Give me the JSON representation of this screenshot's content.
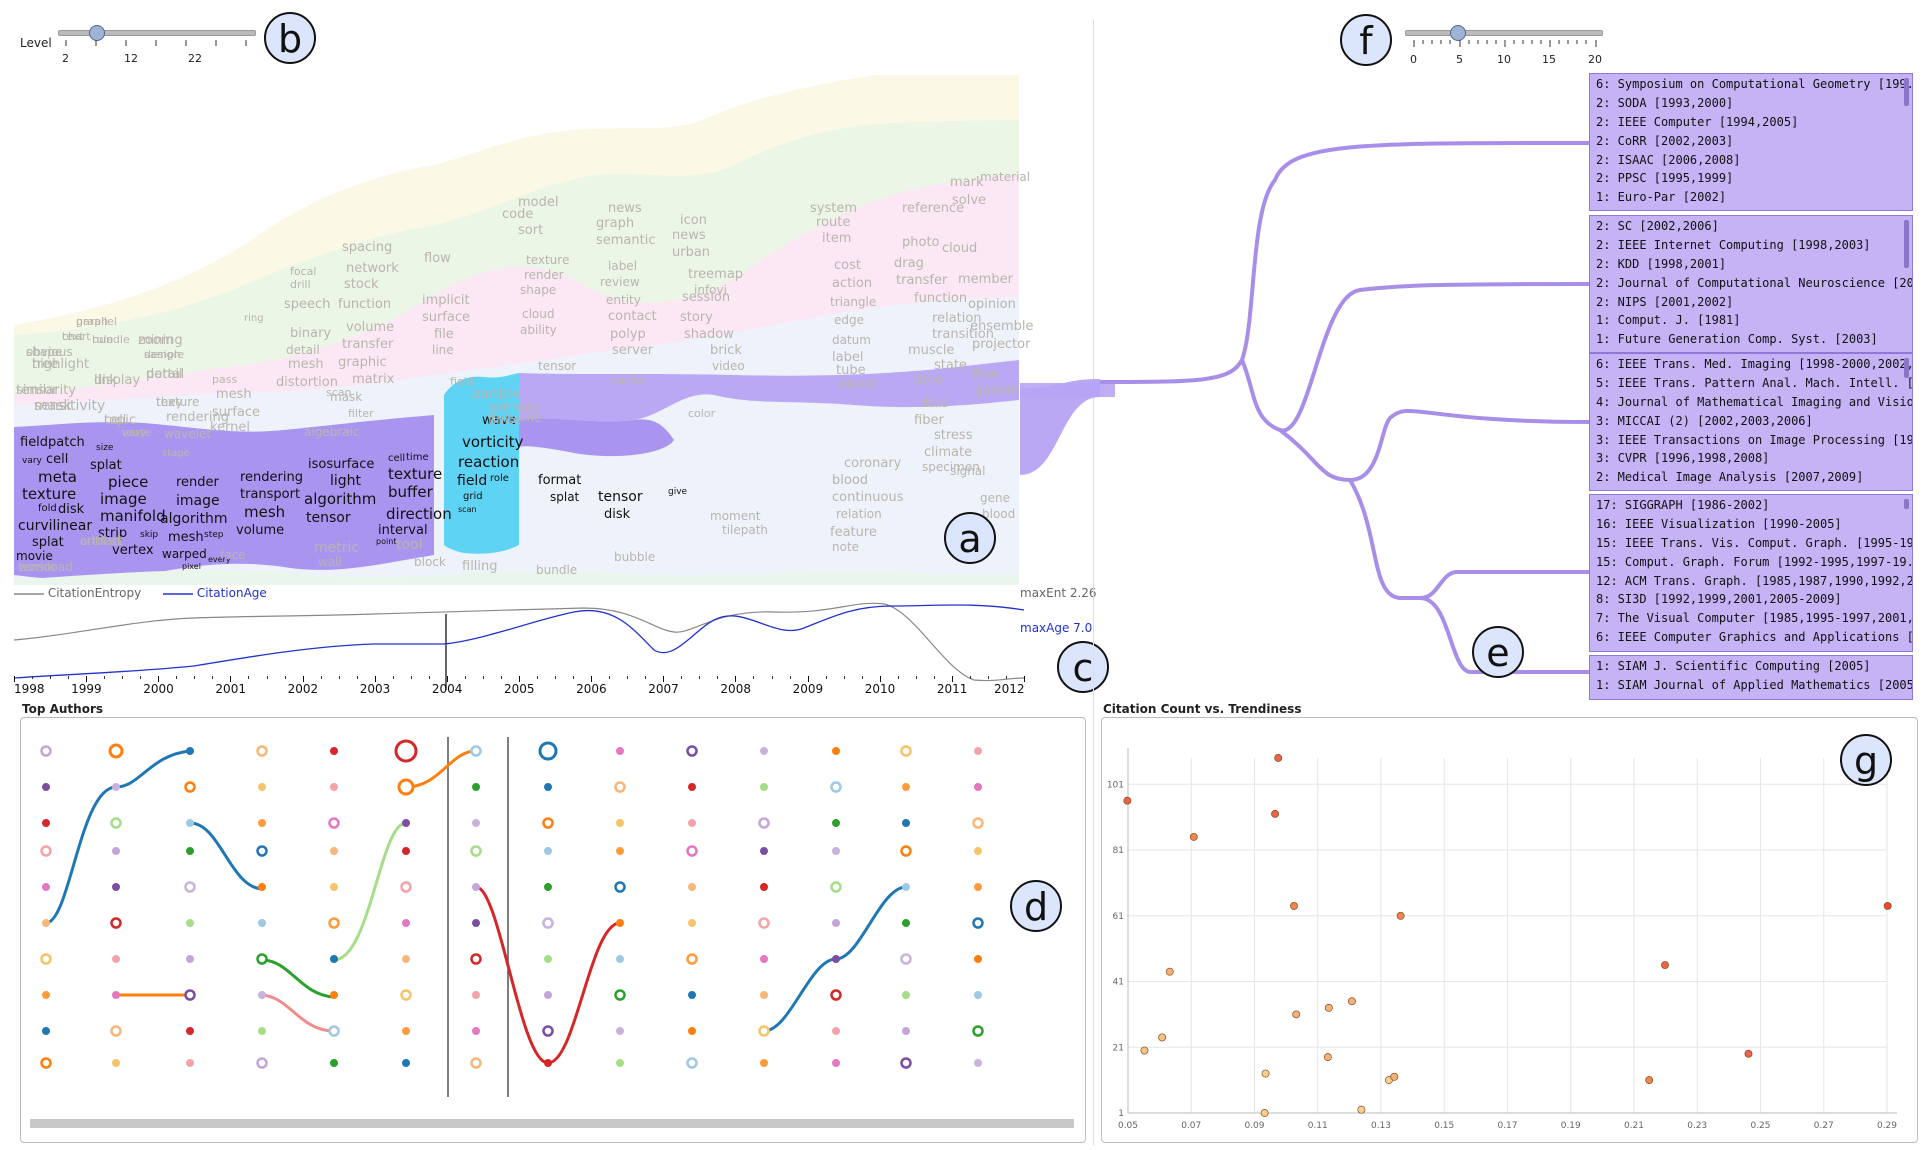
{
  "level_slider": {
    "label": "Level",
    "ticks": [
      "2",
      "12",
      "22"
    ],
    "value_fraction": 0.2
  },
  "depth_slider": {
    "ticks": [
      "0",
      "5",
      "10",
      "15",
      "20"
    ],
    "value": 5,
    "max": 20
  },
  "panel_labels": {
    "a": "a",
    "b": "b",
    "c": "c",
    "d": "d",
    "e": "e",
    "f": "f",
    "g": "g"
  },
  "topic_words": {
    "highlighted": [
      "wave",
      "vorticity",
      "reaction",
      "field",
      "role",
      "grid",
      "scan"
    ],
    "dark_layer": [
      "fieldpatch",
      "vary",
      "cell",
      "meta",
      "texture",
      "fold",
      "disk",
      "curvilinear",
      "splat",
      "movie",
      "size",
      "splat",
      "piece",
      "image",
      "manifold",
      "strip",
      "skip",
      "vertex",
      "render",
      "image",
      "algorithm",
      "mesh",
      "step",
      "warped",
      "pixel",
      "every",
      "rendering",
      "transport",
      "mesh",
      "volume",
      "isosurface",
      "light",
      "algorithm",
      "tensor",
      "cell",
      "time",
      "texture",
      "buffer",
      "direction",
      "interval",
      "point",
      "format",
      "splat",
      "tensor",
      "disk",
      "give"
    ],
    "light_words": [
      "text",
      "shape",
      "tree",
      "similarity",
      "mask",
      "tensor",
      "parallel",
      "rule",
      "display",
      "cell",
      "very",
      "critical",
      "mining",
      "design",
      "portal",
      "texture",
      "rendering",
      "wavelet",
      "stage",
      "ring",
      "pass",
      "mesh",
      "surface",
      "kernel",
      "face",
      "focal",
      "drill",
      "speech",
      "binary",
      "detail",
      "mesh",
      "distortion",
      "scan",
      "algebraic",
      "metric",
      "wall",
      "spacing",
      "network",
      "stock",
      "function",
      "volume",
      "transfer",
      "graphic",
      "matrix",
      "mask",
      "filter",
      "tool",
      "block",
      "flow",
      "implicit",
      "surface",
      "file",
      "line",
      "field",
      "particle",
      "pathway",
      "finite",
      "filling",
      "code",
      "model",
      "sort",
      "texture",
      "render",
      "shape",
      "cloud",
      "ability",
      "tensor",
      "line",
      "bundle",
      "news",
      "graph",
      "semantic",
      "label",
      "review",
      "entity",
      "contact",
      "polyp",
      "server",
      "cache",
      "bubble",
      "icon",
      "news",
      "urban",
      "treemap",
      "infovi",
      "session",
      "story",
      "shadow",
      "brick",
      "video",
      "color",
      "moment",
      "tilepath",
      "system",
      "route",
      "item",
      "cost",
      "action",
      "triangle",
      "edge",
      "datum",
      "label",
      "tube",
      "based",
      "coronary",
      "blood",
      "continuous",
      "relation",
      "feature",
      "note",
      "reference",
      "photo",
      "drag",
      "transfer",
      "function",
      "relation",
      "transition",
      "muscle",
      "state",
      "time",
      "dtus",
      "fiber",
      "stress",
      "climate",
      "specimen",
      "signal",
      "mark",
      "solve",
      "cloud",
      "member",
      "opinion",
      "ensemble",
      "projector",
      "flow",
      "genome",
      "gene",
      "blood",
      "material",
      "chart",
      "obvious",
      "highlight",
      "tensor",
      "sensitivity",
      "workload",
      "graph",
      "bundle",
      "link",
      "topic",
      "route",
      "artifact",
      "zoom",
      "sample",
      "detail",
      "they"
    ]
  },
  "metrics_legend": {
    "entropy": "CitationEntropy",
    "age": "CitationAge",
    "max_ent": "maxEnt 2.26",
    "max_age": "maxAge 7.0"
  },
  "years": [
    "1998",
    "1999",
    "2000",
    "2001",
    "2002",
    "2003",
    "2004",
    "2005",
    "2006",
    "2007",
    "2008",
    "2009",
    "2010",
    "2011",
    "2012"
  ],
  "top_authors_title": "Top Authors",
  "scatter_title": "Citation Count vs. Trendiness",
  "venue_groups": [
    {
      "lines": [
        "6: Symposium on Computational Geometry [199...",
        "2: SODA [1993,2000]",
        "2: IEEE Computer [1994,2005]",
        "2: CoRR [2002,2003]",
        "2: ISAAC [2006,2008]",
        "2: PPSC [1995,1999]",
        "1: Euro-Par [2002]"
      ]
    },
    {
      "lines": [
        "2: SC [2002,2006]",
        "2: IEEE Internet Computing [1998,2003]",
        "2: KDD [1998,2001]",
        "2: Journal of Computational Neuroscience [2003,...",
        "2: NIPS [2001,2002]",
        "1: Comput. J. [1981]",
        "1: Future Generation Comp. Syst. [2003]"
      ]
    },
    {
      "lines": [
        "6: IEEE Trans. Med. Imaging [1998-2000,2002,2...",
        "5: IEEE Trans. Pattern Anal. Mach. Intell. [1990,1...",
        "4: Journal of Mathematical Imaging and Vision [1...",
        "3: MICCAI (2) [2002,2003,2006]",
        "3: IEEE Transactions on Image Processing [1995...",
        "3: CVPR [1996,1998,2008]",
        "2: Medical Image Analysis [2007,2009]"
      ]
    },
    {
      "lines": [
        "17: SIGGRAPH [1986-2002]",
        "16: IEEE Visualization [1990-2005]",
        "15: IEEE Trans. Vis. Comput. Graph. [1995-1997,...",
        "15: Comput. Graph. Forum [1992-1995,1997-19...",
        "12: ACM Trans. Graph. [1985,1987,1990,1992,2...",
        "8: SI3D [1992,1999,2001,2005-2009]",
        "7: The Visual Computer [1985,1995-1997,2001,...",
        "6: IEEE Computer Graphics and Applications [19..."
      ]
    },
    {
      "lines": [
        "1: SIAM J. Scientific Computing [2005]",
        "1: SIAM Journal of Applied Mathematics [2005]"
      ]
    }
  ],
  "colors": {
    "purple": "#b7a3f3",
    "dark_purple": "#a48ff0",
    "cyan": "#5fd3f3",
    "entropy_line": "#888888",
    "age_line": "#2233cc",
    "tree_line": "#a88ee8"
  },
  "chart_data": {
    "type": "scatter",
    "title": "Citation Count vs. Trendiness",
    "xlabel": "",
    "ylabel": "",
    "x_ticks": [
      "0.05",
      "0.07",
      "0.09",
      "0.11",
      "0.13",
      "0.15",
      "0.17",
      "0.19",
      "0.21",
      "0.23",
      "0.25",
      "0.27",
      "0.29"
    ],
    "y_ticks": [
      "1",
      "21",
      "41",
      "61",
      "81",
      "101"
    ],
    "xlim": [
      0.05,
      0.29
    ],
    "ylim": [
      1,
      109
    ],
    "grid": true,
    "points": [
      {
        "x": 0.0498,
        "y": 96,
        "c": "#e8654a"
      },
      {
        "x": 0.0708,
        "y": 85,
        "c": "#ee8650"
      },
      {
        "x": 0.0975,
        "y": 109,
        "c": "#e8654a"
      },
      {
        "x": 0.0965,
        "y": 92,
        "c": "#e8654a"
      },
      {
        "x": 0.1025,
        "y": 64,
        "c": "#ee8650"
      },
      {
        "x": 0.1362,
        "y": 61,
        "c": "#ee8650"
      },
      {
        "x": 0.2198,
        "y": 46,
        "c": "#e8654a"
      },
      {
        "x": 0.2902,
        "y": 64,
        "c": "#e24b34"
      },
      {
        "x": 0.0632,
        "y": 44,
        "c": "#f3b279"
      },
      {
        "x": 0.0608,
        "y": 24,
        "c": "#f5c286"
      },
      {
        "x": 0.0552,
        "y": 20,
        "c": "#f5c286"
      },
      {
        "x": 0.1032,
        "y": 31,
        "c": "#f3b279"
      },
      {
        "x": 0.1135,
        "y": 33,
        "c": "#f3b279"
      },
      {
        "x": 0.1208,
        "y": 35,
        "c": "#f3b279"
      },
      {
        "x": 0.1132,
        "y": 18,
        "c": "#f3b279"
      },
      {
        "x": 0.0935,
        "y": 13,
        "c": "#f7d08d"
      },
      {
        "x": 0.1325,
        "y": 11,
        "c": "#f7d08d"
      },
      {
        "x": 0.1342,
        "y": 12,
        "c": "#f3b279"
      },
      {
        "x": 0.0932,
        "y": 1,
        "c": "#f7d08d"
      },
      {
        "x": 0.1238,
        "y": 2,
        "c": "#f7d08d"
      },
      {
        "x": 0.2148,
        "y": 11,
        "c": "#ee8650"
      },
      {
        "x": 0.2462,
        "y": 19,
        "c": "#e8654a"
      }
    ]
  }
}
